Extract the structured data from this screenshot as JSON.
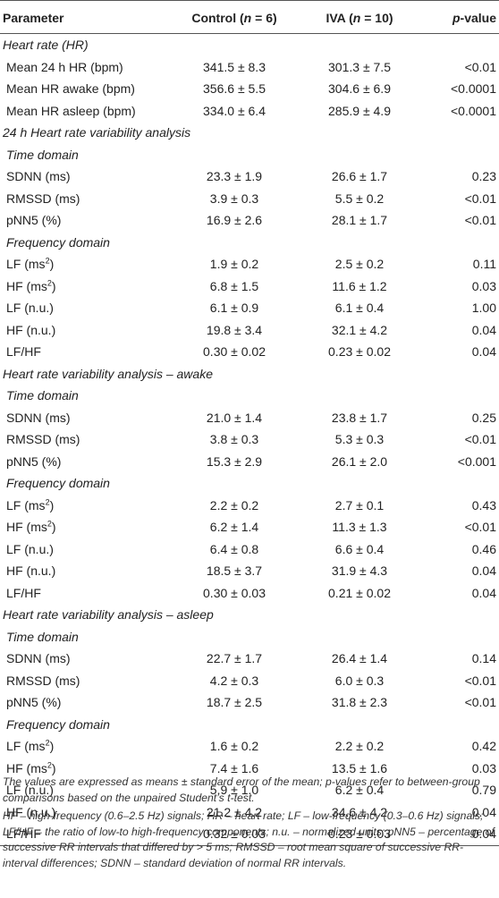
{
  "table": {
    "header": {
      "parameter": "Parameter",
      "control": "Control (n = 6)",
      "iva": "IVA (n = 10)",
      "pvalue": "p-value"
    },
    "rows": [
      {
        "type": "section",
        "label": "Heart rate (HR)"
      },
      {
        "type": "data",
        "label": "Mean 24 h HR (bpm)",
        "control": "341.5 ± 8.3",
        "iva": "301.3 ± 7.5",
        "p": "<0.01"
      },
      {
        "type": "data",
        "label": "Mean HR awake (bpm)",
        "control": "356.6 ± 5.5",
        "iva": "304.6 ± 6.9",
        "p": "<0.0001"
      },
      {
        "type": "data",
        "label": "Mean HR asleep (bpm)",
        "control": "334.0 ± 6.4",
        "iva": "285.9 ± 4.9",
        "p": "<0.0001"
      },
      {
        "type": "section",
        "label": "24 h Heart rate variability analysis"
      },
      {
        "type": "sub",
        "label": "Time domain"
      },
      {
        "type": "data",
        "label": "SDNN (ms)",
        "control": "23.3 ± 1.9",
        "iva": "26.6 ± 1.7",
        "p": "0.23"
      },
      {
        "type": "data",
        "label": "RMSSD (ms)",
        "control": "3.9 ± 0.3",
        "iva": "5.5 ± 0.2",
        "p": "<0.01"
      },
      {
        "type": "data",
        "label": "pNN5 (%)",
        "control": "16.9 ± 2.6",
        "iva": "28.1 ± 1.7",
        "p": "<0.01"
      },
      {
        "type": "sub",
        "label": "Frequency domain"
      },
      {
        "type": "data",
        "label": "LF (ms",
        "sup": "2",
        "suffix": ")",
        "control": "1.9 ± 0.2",
        "iva": "2.5 ± 0.2",
        "p": "0.11"
      },
      {
        "type": "data",
        "label": "HF (ms",
        "sup": "2",
        "suffix": ")",
        "control": "6.8 ± 1.5",
        "iva": "11.6 ± 1.2",
        "p": "0.03"
      },
      {
        "type": "data",
        "label": "LF (n.u.)",
        "control": "6.1 ± 0.9",
        "iva": "6.1 ± 0.4",
        "p": "1.00"
      },
      {
        "type": "data",
        "label": "HF (n.u.)",
        "control": "19.8 ± 3.4",
        "iva": "32.1 ± 4.2",
        "p": "0.04"
      },
      {
        "type": "data",
        "label": "LF/HF",
        "control": "0.30 ± 0.02",
        "iva": "0.23 ± 0.02",
        "p": "0.04"
      },
      {
        "type": "section",
        "label": "Heart rate variability analysis – awake"
      },
      {
        "type": "sub",
        "label": "Time domain"
      },
      {
        "type": "data",
        "label": "SDNN (ms)",
        "control": "21.0 ± 1.4",
        "iva": "23.8 ± 1.7",
        "p": "0.25"
      },
      {
        "type": "data",
        "label": "RMSSD (ms)",
        "control": "3.8 ± 0.3",
        "iva": "5.3 ± 0.3",
        "p": "<0.01"
      },
      {
        "type": "data",
        "label": "pNN5 (%)",
        "control": "15.3 ± 2.9",
        "iva": "26.1 ± 2.0",
        "p": "<0.001"
      },
      {
        "type": "sub",
        "label": "Frequency domain"
      },
      {
        "type": "data",
        "label": "LF (ms",
        "sup": "2",
        "suffix": ")",
        "control": "2.2 ± 0.2",
        "iva": "2.7 ± 0.1",
        "p": "0.43"
      },
      {
        "type": "data",
        "label": "HF (ms",
        "sup": "2",
        "suffix": ")",
        "control": "6.2 ± 1.4",
        "iva": "11.3 ± 1.3",
        "p": "<0.01"
      },
      {
        "type": "data",
        "label": "LF (n.u.)",
        "control": "6.4 ± 0.8",
        "iva": "6.6 ± 0.4",
        "p": "0.46"
      },
      {
        "type": "data",
        "label": "HF (n.u.)",
        "control": "18.5 ± 3.7",
        "iva": "31.9 ± 4.3",
        "p": "0.04"
      },
      {
        "type": "data",
        "label": "LF/HF",
        "control": "0.30 ± 0.03",
        "iva": "0.21 ± 0.02",
        "p": "0.04"
      },
      {
        "type": "section",
        "label": "Heart rate variability analysis – asleep"
      },
      {
        "type": "sub",
        "label": "Time domain"
      },
      {
        "type": "data",
        "label": "SDNN (ms)",
        "control": "22.7 ± 1.7",
        "iva": "26.4 ± 1.4",
        "p": "0.14"
      },
      {
        "type": "data",
        "label": "RMSSD (ms)",
        "control": "4.2 ± 0.3",
        "iva": "6.0 ± 0.3",
        "p": "<0.01"
      },
      {
        "type": "data",
        "label": "pNN5 (%)",
        "control": "18.7 ± 2.5",
        "iva": "31.8 ± 2.3",
        "p": "<0.01"
      },
      {
        "type": "sub",
        "label": "Frequency domain"
      },
      {
        "type": "data",
        "label": "LF (ms",
        "sup": "2",
        "suffix": ")",
        "control": "1.6 ± 0.2",
        "iva": "2.2 ± 0.2",
        "p": "0.42"
      },
      {
        "type": "data",
        "label": "HF (ms",
        "sup": "2",
        "suffix": ")",
        "control": "7.4 ± 1.6",
        "iva": "13.5 ± 1.6",
        "p": "0.03"
      },
      {
        "type": "data",
        "label": "LF (n.u.)",
        "control": "5.9 ± 1.0",
        "iva": "6.2 ± 0.4",
        "p": "0.79"
      },
      {
        "type": "data",
        "label": "HF (n.u.)",
        "control": "21.2 ± 4.2",
        "iva": "34.6 ± 4.2",
        "p": "0.04"
      },
      {
        "type": "data",
        "label": "LF/HF",
        "control": "0.32 ± 0.03",
        "iva": "0.23 ± 0.03",
        "p": "0.04"
      }
    ]
  },
  "footnotes": {
    "note1": "The values are expressed as means ± standard error of the mean; p-values refer to between-group comparisons based on the unpaired Student’s t-test.",
    "note2": "HF – high-frequency (0.6–2.5 Hz) signals; HR – heart rate; LF – low-frequency (0.3–0.6 Hz) signals; LF/HF – the ratio of low-to high-frequency components; n.u. – normalized units; pNN5 – percentage of successive RR intervals that differed by > 5 ms; RMSSD – root mean square of successive RR-interval differences; SDNN – standard deviation of normal RR intervals."
  }
}
